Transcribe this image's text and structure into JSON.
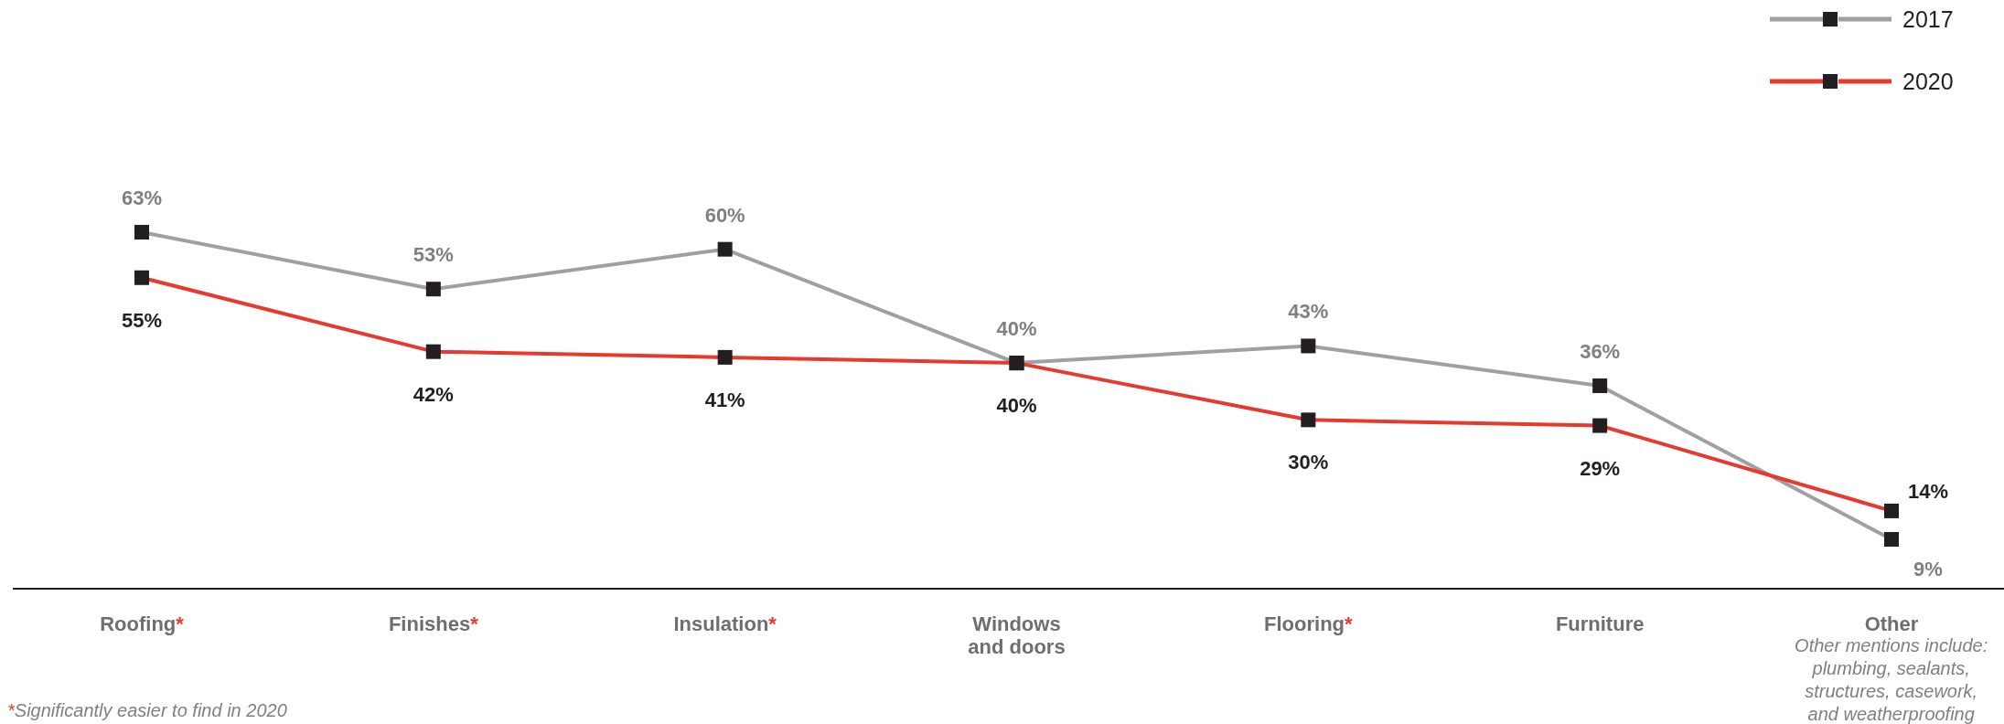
{
  "chart_data": {
    "type": "line",
    "categories": [
      "Roofing*",
      "Finishes*",
      "Insulation*",
      "Windows and doors",
      "Flooring*",
      "Furniture",
      "Other"
    ],
    "series": [
      {
        "name": "2017",
        "color": "#a09fa2",
        "values": [
          63,
          53,
          60,
          40,
          43,
          36,
          9
        ],
        "value_labels": [
          "63%",
          "53%",
          "60%",
          "40%",
          "43%",
          "36%",
          "9%"
        ]
      },
      {
        "name": "2020",
        "color": "#e8392f",
        "values": [
          55,
          42,
          41,
          40,
          30,
          29,
          14
        ],
        "value_labels": [
          "55%",
          "42%",
          "41%",
          "40%",
          "30%",
          "29%",
          "14%"
        ]
      }
    ],
    "marker": "square",
    "legend": "top right",
    "annotations": [
      "Other mentions include: plumbing, sealants, structures, casework, and weatherproofing",
      "*Significantly easier to find in 2020"
    ]
  }
}
